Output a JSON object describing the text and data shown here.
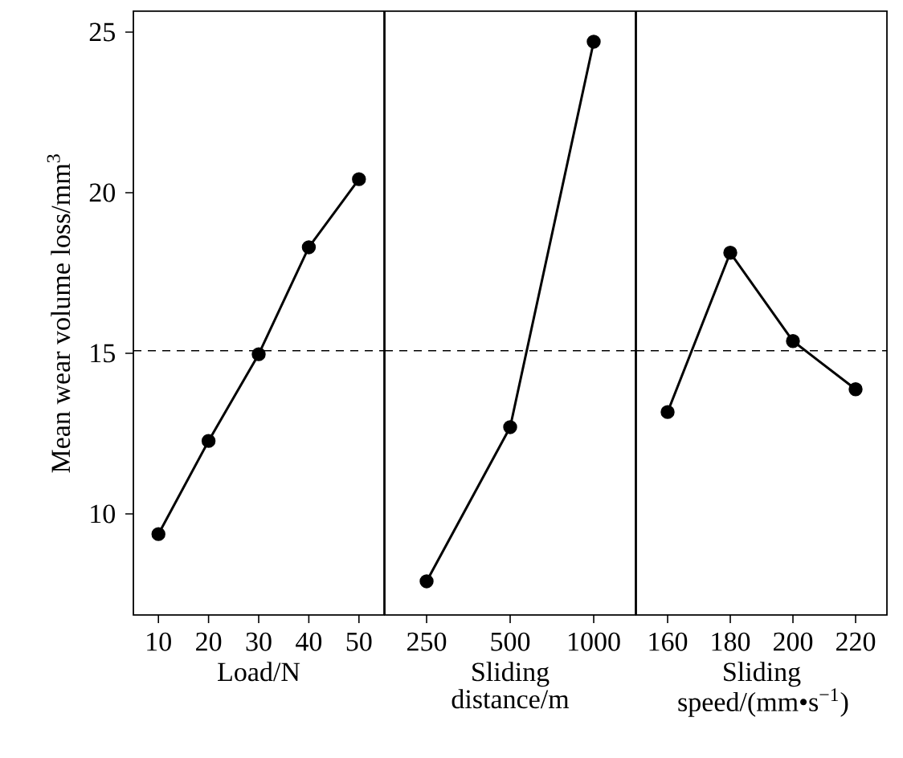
{
  "chart_data": [
    {
      "type": "line",
      "categories": [
        "10",
        "20",
        "30",
        "40",
        "50"
      ],
      "xlabel": "Load/N",
      "ylabel": "Mean wear volume loss/mm$^{3}$",
      "series": [
        {
          "color": "#000000",
          "values": [
            9.37,
            12.27,
            14.97,
            18.3,
            20.42
          ]
        }
      ],
      "ylim": [
        6.85,
        25.65
      ],
      "yticks": [
        10,
        15,
        20,
        25
      ],
      "marker": "circle",
      "line_style": "solid",
      "grid": false,
      "ref_lines": [
        {
          "axis": "y",
          "value": 15.08,
          "line_style": "dashed"
        }
      ]
    },
    {
      "type": "line",
      "categories": [
        "250",
        "500",
        "1000"
      ],
      "xlabel": "Sliding distance/m",
      "series": [
        {
          "color": "#000000",
          "values": [
            7.9,
            12.7,
            24.7
          ]
        }
      ],
      "ylim": [
        6.85,
        25.65
      ],
      "tick_labels": "x",
      "marker": "circle",
      "line_style": "solid",
      "grid": false,
      "ref_lines": [
        {
          "axis": "y",
          "value": 15.08,
          "line_style": "dashed"
        }
      ]
    },
    {
      "type": "line",
      "categories": [
        "160",
        "180",
        "200",
        "220"
      ],
      "xlabel": "Sliding speed/(mm•s$^{−1}$)",
      "series": [
        {
          "color": "#000000",
          "values": [
            13.17,
            18.13,
            15.38,
            13.88
          ]
        }
      ],
      "ylim": [
        6.85,
        25.65
      ],
      "tick_labels": "x",
      "marker": "circle",
      "line_style": "solid",
      "grid": false,
      "ref_lines": [
        {
          "axis": "y",
          "value": 15.08,
          "line_style": "dashed"
        }
      ]
    }
  ]
}
